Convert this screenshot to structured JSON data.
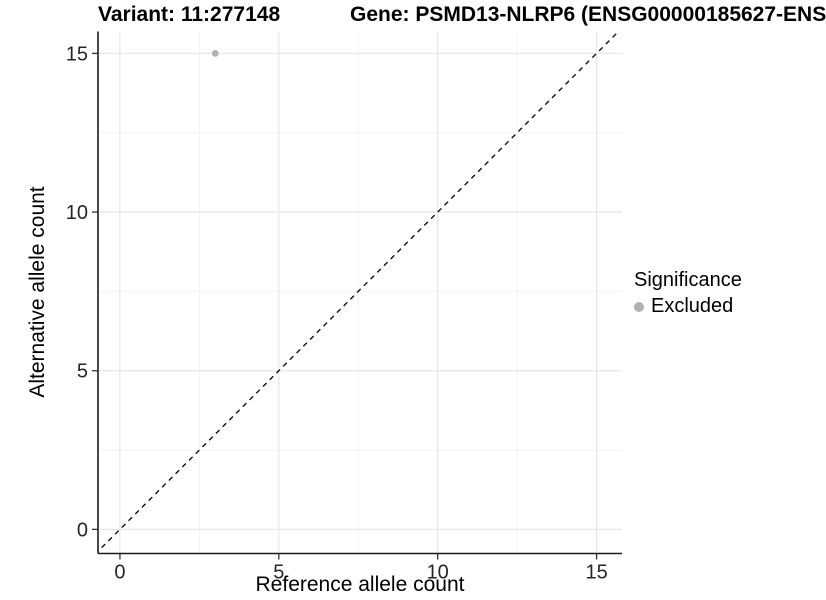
{
  "chart_data": {
    "type": "scatter",
    "title_left": "Variant: 11:277148",
    "title_right": "Gene: PSMD13-NLRP6 (ENSG00000185627-ENS",
    "xlabel": "Reference allele count",
    "ylabel": "Alternative allele count",
    "xlim": [
      -0.69,
      15.8
    ],
    "ylim": [
      -0.76,
      15.69
    ],
    "xticks": [
      0,
      5,
      10,
      15
    ],
    "yticks": [
      0,
      5,
      10,
      15
    ],
    "minor_ticks_x": [
      2.5,
      7.5,
      12.5
    ],
    "minor_ticks_y": [
      2.5,
      7.5,
      12.5
    ],
    "grid": true,
    "legend_position": "right",
    "series": [
      {
        "name": "Excluded",
        "color": "#b2b2b2",
        "points": [
          [
            3,
            15
          ]
        ]
      }
    ],
    "reference_line": {
      "type": "identity",
      "slope": 1,
      "intercept": 0,
      "style": "dashed",
      "color": "#111111"
    },
    "legend": {
      "title": "Significance",
      "items": [
        {
          "label": "Excluded",
          "color": "#b2b2b2"
        }
      ]
    }
  },
  "colors": {
    "background": "#ffffff",
    "grid_major": "#e7e7e7",
    "grid_minor": "#f3f3f3",
    "axis_line": "#1a1a1a",
    "tick_mark": "#333333",
    "tick_label": "#262626",
    "point": "#b2b2b2"
  }
}
